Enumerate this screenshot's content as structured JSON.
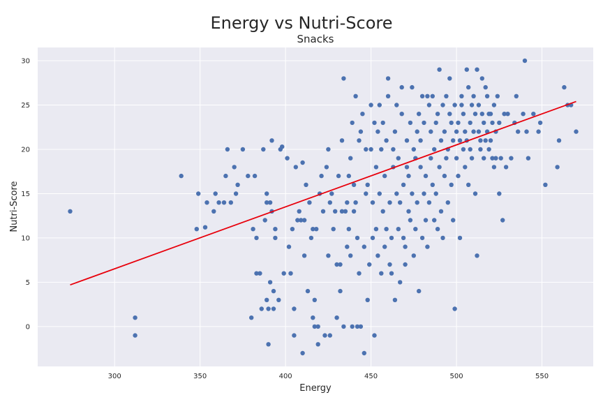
{
  "chart_data": {
    "type": "scatter",
    "title": "Energy vs Nutri-Score",
    "subtitle": "Snacks",
    "xlabel": "Energy",
    "ylabel": "Nutri-Score",
    "xlim": [
      255,
      580
    ],
    "ylim": [
      -4.5,
      31.5
    ],
    "xticks": [
      300,
      350,
      400,
      450,
      500,
      550
    ],
    "yticks": [
      0,
      5,
      10,
      15,
      20,
      25,
      30
    ],
    "grid": true,
    "colors": {
      "points": "#4c72b0",
      "trend": "#e8000b",
      "background": "#eaeaf2",
      "grid": "#ffffff"
    },
    "trendline": {
      "x": [
        274,
        570
      ],
      "y": [
        4.7,
        25.4
      ]
    },
    "points": [
      [
        274,
        13
      ],
      [
        312,
        1
      ],
      [
        312,
        -1
      ],
      [
        339,
        17
      ],
      [
        348,
        11
      ],
      [
        349,
        15
      ],
      [
        353,
        11.2
      ],
      [
        354,
        14
      ],
      [
        358,
        13
      ],
      [
        359,
        15
      ],
      [
        361,
        14
      ],
      [
        364,
        14
      ],
      [
        365,
        17
      ],
      [
        366,
        20
      ],
      [
        368,
        14
      ],
      [
        370,
        18
      ],
      [
        371,
        15
      ],
      [
        372,
        16
      ],
      [
        375,
        20
      ],
      [
        378,
        17
      ],
      [
        380,
        1
      ],
      [
        381,
        11
      ],
      [
        382,
        17
      ],
      [
        383,
        10
      ],
      [
        383,
        6
      ],
      [
        385,
        6
      ],
      [
        386,
        2
      ],
      [
        387,
        20
      ],
      [
        388,
        12
      ],
      [
        389,
        3
      ],
      [
        389,
        14
      ],
      [
        389,
        15
      ],
      [
        390,
        -2
      ],
      [
        390,
        2
      ],
      [
        391,
        14
      ],
      [
        391,
        5
      ],
      [
        392,
        21
      ],
      [
        392,
        13
      ],
      [
        393,
        2
      ],
      [
        393,
        4
      ],
      [
        394,
        11
      ],
      [
        394,
        10
      ],
      [
        396,
        3
      ],
      [
        397,
        20
      ],
      [
        398,
        20.3
      ],
      [
        399,
        6
      ],
      [
        401,
        19
      ],
      [
        402,
        9
      ],
      [
        403,
        6
      ],
      [
        404,
        11
      ],
      [
        405,
        2
      ],
      [
        405,
        -1
      ],
      [
        406,
        18
      ],
      [
        407,
        12
      ],
      [
        408,
        13
      ],
      [
        409,
        12
      ],
      [
        410,
        18.5
      ],
      [
        410,
        -3
      ],
      [
        411,
        12
      ],
      [
        411,
        8
      ],
      [
        412,
        16
      ],
      [
        413,
        4
      ],
      [
        414,
        14
      ],
      [
        415,
        10
      ],
      [
        416,
        11
      ],
      [
        416,
        1
      ],
      [
        417,
        3
      ],
      [
        417,
        0
      ],
      [
        418,
        11
      ],
      [
        419,
        -2
      ],
      [
        419,
        0
      ],
      [
        420,
        15
      ],
      [
        421,
        17
      ],
      [
        422,
        13
      ],
      [
        423,
        -1
      ],
      [
        424,
        18
      ],
      [
        425,
        8
      ],
      [
        425,
        20
      ],
      [
        426,
        14
      ],
      [
        426,
        -1
      ],
      [
        427,
        15
      ],
      [
        428,
        11
      ],
      [
        429,
        13
      ],
      [
        430,
        7
      ],
      [
        430,
        1
      ],
      [
        431,
        17
      ],
      [
        432,
        4
      ],
      [
        432,
        7
      ],
      [
        433,
        13
      ],
      [
        433,
        21
      ],
      [
        434,
        28
      ],
      [
        434,
        0
      ],
      [
        435,
        13
      ],
      [
        436,
        14
      ],
      [
        436,
        9
      ],
      [
        437,
        17
      ],
      [
        437,
        11
      ],
      [
        438,
        19
      ],
      [
        438,
        8
      ],
      [
        439,
        23
      ],
      [
        439,
        0
      ],
      [
        440,
        16
      ],
      [
        440,
        13
      ],
      [
        441,
        14
      ],
      [
        441,
        26
      ],
      [
        442,
        10
      ],
      [
        442,
        0
      ],
      [
        443,
        21
      ],
      [
        443,
        6
      ],
      [
        444,
        22
      ],
      [
        444,
        0
      ],
      [
        445,
        24
      ],
      [
        446,
        -3
      ],
      [
        446,
        9
      ],
      [
        447,
        15
      ],
      [
        447,
        20
      ],
      [
        448,
        16
      ],
      [
        448,
        3
      ],
      [
        449,
        7
      ],
      [
        450,
        25
      ],
      [
        450,
        20
      ],
      [
        451,
        14
      ],
      [
        451,
        10
      ],
      [
        452,
        23
      ],
      [
        452,
        -1
      ],
      [
        453,
        18
      ],
      [
        453,
        11
      ],
      [
        454,
        22
      ],
      [
        454,
        8
      ],
      [
        455,
        25
      ],
      [
        455,
        15
      ],
      [
        456,
        20
      ],
      [
        456,
        6
      ],
      [
        457,
        23
      ],
      [
        457,
        13
      ],
      [
        458,
        9
      ],
      [
        458,
        17
      ],
      [
        459,
        21
      ],
      [
        459,
        11
      ],
      [
        460,
        28
      ],
      [
        460,
        26
      ],
      [
        461,
        14
      ],
      [
        461,
        7
      ],
      [
        462,
        6
      ],
      [
        462,
        10
      ],
      [
        463,
        18
      ],
      [
        463,
        20
      ],
      [
        464,
        22
      ],
      [
        464,
        3
      ],
      [
        465,
        25
      ],
      [
        465,
        15
      ],
      [
        466,
        19
      ],
      [
        466,
        11
      ],
      [
        467,
        14
      ],
      [
        467,
        5
      ],
      [
        468,
        27
      ],
      [
        468,
        24
      ],
      [
        469,
        16
      ],
      [
        469,
        10
      ],
      [
        470,
        9
      ],
      [
        470,
        7
      ],
      [
        471,
        21
      ],
      [
        471,
        18
      ],
      [
        472,
        13
      ],
      [
        472,
        17
      ],
      [
        473,
        23
      ],
      [
        473,
        12
      ],
      [
        474,
        27
      ],
      [
        474,
        15
      ],
      [
        475,
        20
      ],
      [
        475,
        8
      ],
      [
        476,
        11
      ],
      [
        476,
        19
      ],
      [
        477,
        14
      ],
      [
        477,
        22
      ],
      [
        478,
        24
      ],
      [
        478,
        4
      ],
      [
        479,
        18
      ],
      [
        479,
        21
      ],
      [
        480,
        26
      ],
      [
        480,
        10
      ],
      [
        481,
        15
      ],
      [
        481,
        23
      ],
      [
        482,
        17
      ],
      [
        482,
        12
      ],
      [
        483,
        26
      ],
      [
        483,
        9
      ],
      [
        484,
        25
      ],
      [
        484,
        14
      ],
      [
        485,
        22
      ],
      [
        485,
        19
      ],
      [
        486,
        16
      ],
      [
        486,
        26
      ],
      [
        487,
        12
      ],
      [
        487,
        20
      ],
      [
        488,
        23
      ],
      [
        488,
        15
      ],
      [
        489,
        24
      ],
      [
        489,
        11
      ],
      [
        490,
        29
      ],
      [
        490,
        18
      ],
      [
        491,
        21
      ],
      [
        491,
        13
      ],
      [
        492,
        25
      ],
      [
        492,
        10
      ],
      [
        493,
        22
      ],
      [
        493,
        17
      ],
      [
        494,
        26
      ],
      [
        494,
        19
      ],
      [
        495,
        20
      ],
      [
        495,
        14
      ],
      [
        496,
        24
      ],
      [
        496,
        28
      ],
      [
        497,
        23
      ],
      [
        497,
        16
      ],
      [
        498,
        21
      ],
      [
        498,
        12
      ],
      [
        499,
        25
      ],
      [
        499,
        2
      ],
      [
        500,
        22
      ],
      [
        500,
        19
      ],
      [
        501,
        23
      ],
      [
        501,
        17
      ],
      [
        502,
        21
      ],
      [
        502,
        10
      ],
      [
        503,
        25
      ],
      [
        503,
        26
      ],
      [
        504,
        24
      ],
      [
        504,
        20
      ],
      [
        505,
        22
      ],
      [
        505,
        18
      ],
      [
        506,
        29
      ],
      [
        506,
        21
      ],
      [
        507,
        27
      ],
      [
        507,
        16
      ],
      [
        508,
        23
      ],
      [
        508,
        20
      ],
      [
        509,
        25
      ],
      [
        509,
        19
      ],
      [
        510,
        26
      ],
      [
        510,
        22
      ],
      [
        511,
        24
      ],
      [
        511,
        15
      ],
      [
        512,
        29
      ],
      [
        512,
        8
      ],
      [
        513,
        22
      ],
      [
        513,
        25
      ],
      [
        514,
        21
      ],
      [
        514,
        20
      ],
      [
        515,
        28
      ],
      [
        515,
        24
      ],
      [
        516,
        23
      ],
      [
        516,
        19
      ],
      [
        517,
        27
      ],
      [
        517,
        21
      ],
      [
        518,
        26
      ],
      [
        518,
        22
      ],
      [
        519,
        20
      ],
      [
        519,
        24
      ],
      [
        520,
        24
      ],
      [
        520,
        21
      ],
      [
        521,
        23
      ],
      [
        521,
        19
      ],
      [
        522,
        25
      ],
      [
        522,
        18
      ],
      [
        523,
        22
      ],
      [
        523,
        19
      ],
      [
        524,
        26
      ],
      [
        525,
        15
      ],
      [
        525,
        23
      ],
      [
        526,
        19
      ],
      [
        527,
        12
      ],
      [
        528,
        24
      ],
      [
        529,
        18
      ],
      [
        530,
        24
      ],
      [
        532,
        19
      ],
      [
        534,
        23
      ],
      [
        535,
        26
      ],
      [
        536,
        22
      ],
      [
        539,
        24
      ],
      [
        540,
        30
      ],
      [
        541,
        22
      ],
      [
        542,
        19
      ],
      [
        545,
        24
      ],
      [
        548,
        22
      ],
      [
        549,
        23
      ],
      [
        552,
        16
      ],
      [
        559,
        18
      ],
      [
        560,
        21
      ],
      [
        563,
        27
      ],
      [
        565,
        25
      ],
      [
        567,
        25
      ],
      [
        570,
        22
      ]
    ]
  }
}
